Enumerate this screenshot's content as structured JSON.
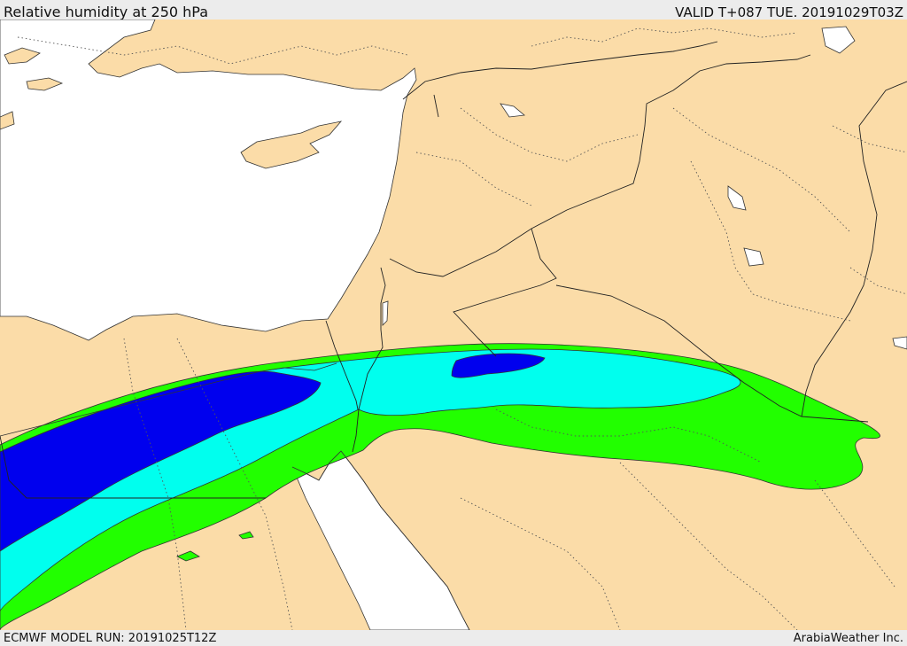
{
  "header": {
    "title": "Relative humidity at 250 hPa",
    "valid": "VALID T+087 TUE. 20191029T03Z"
  },
  "footer": {
    "model_run": "ECMWF MODEL RUN: 20191025T12Z",
    "credit": "ArabiaWeather Inc."
  },
  "colors": {
    "land": "#fbdca8",
    "sea": "#ffffff",
    "rh_green": "#22ff00",
    "rh_cyan": "#00ffee",
    "rh_blue": "#0000ee",
    "background": "#e6e6e6"
  }
}
